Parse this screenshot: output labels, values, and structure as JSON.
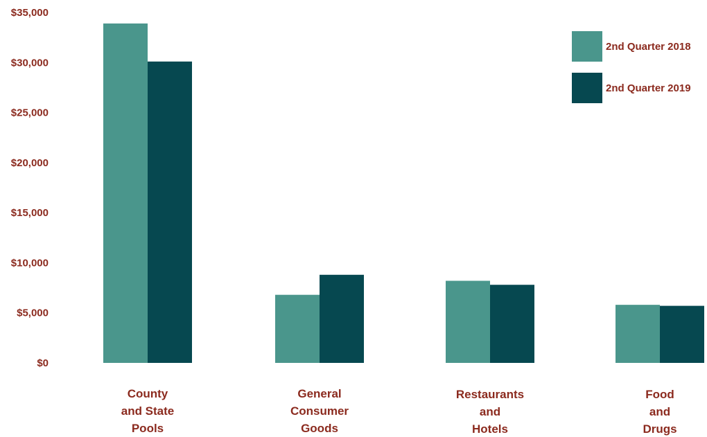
{
  "chart_data": {
    "type": "bar",
    "categories": [
      [
        "County",
        "and State",
        "Pools"
      ],
      [
        "General",
        "Consumer",
        "Goods"
      ],
      [
        "Restaurants",
        "and",
        "Hotels"
      ],
      [
        "Food",
        "and",
        "Drugs"
      ]
    ],
    "series": [
      {
        "name": "2nd Quarter 2018",
        "color": "#4a968c",
        "values": [
          33900,
          6800,
          8200,
          5800
        ]
      },
      {
        "name": "2nd Quarter 2019",
        "color": "#064850",
        "values": [
          30100,
          8800,
          7800,
          5700
        ]
      }
    ],
    "y_ticks": [
      "$0",
      "$5,000",
      "$10,000",
      "$15,000",
      "$20,000",
      "$25,000",
      "$30,000",
      "$35,000"
    ],
    "y_tick_values": [
      0,
      5000,
      10000,
      15000,
      20000,
      25000,
      30000,
      35000
    ],
    "ylim": [
      0,
      35000
    ],
    "title": "",
    "xlabel": "",
    "ylabel": "",
    "grid": false,
    "legend_position": "top-right",
    "label_color": "#8b2a1e"
  }
}
